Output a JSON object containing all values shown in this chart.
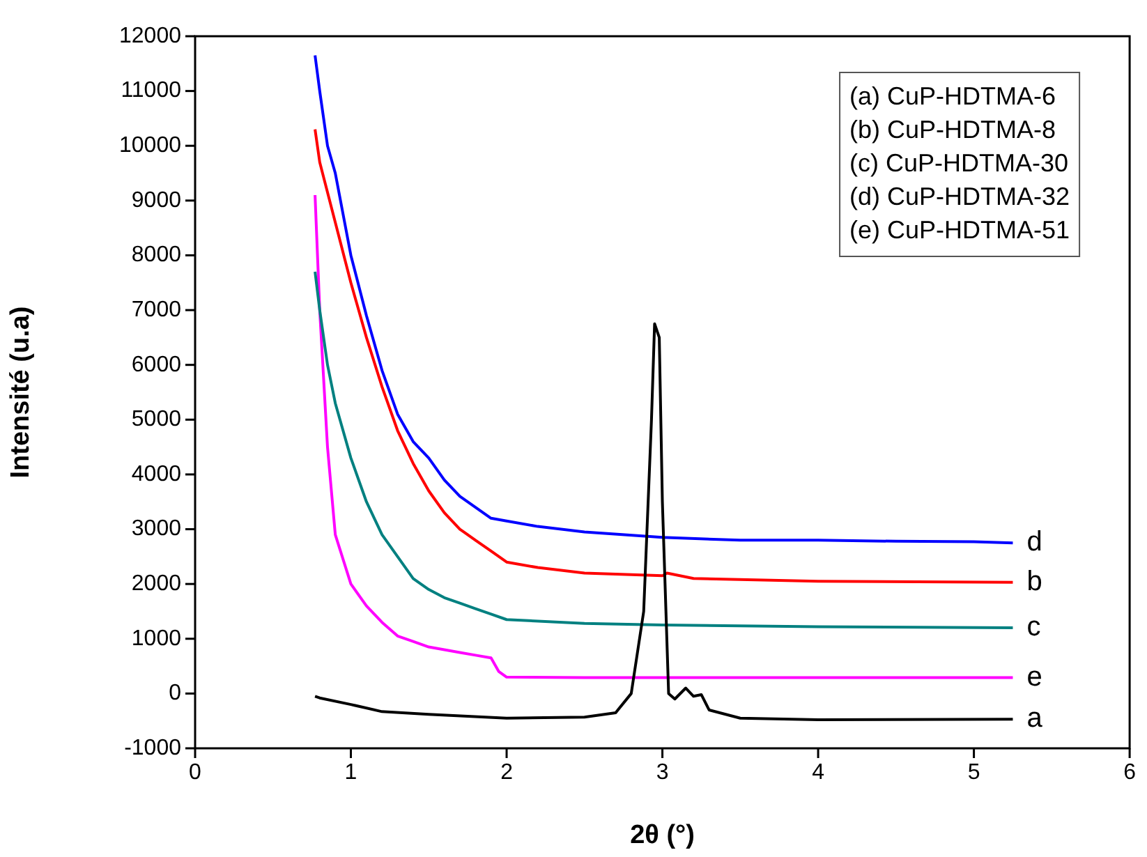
{
  "chart_data": {
    "type": "line",
    "xlabel": "2θ (°)",
    "ylabel": "Intensité (u.a)",
    "xlim": [
      0,
      6
    ],
    "xticks": [
      0,
      1,
      2,
      3,
      4,
      5,
      6
    ],
    "ylim": [
      -1000,
      12000
    ],
    "yticks": [
      -1000,
      0,
      1000,
      2000,
      3000,
      4000,
      5000,
      6000,
      7000,
      8000,
      9000,
      10000,
      11000,
      12000
    ],
    "grid": false,
    "marker": "none",
    "line_style": "solid",
    "series": [
      {
        "name": "a",
        "color": "#000000",
        "x": [
          0.77,
          0.8,
          1.0,
          1.2,
          1.5,
          2.0,
          2.5,
          2.7,
          2.8,
          2.88,
          2.93,
          2.95,
          2.98,
          3.0,
          3.04,
          3.08,
          3.15,
          3.2,
          3.25,
          3.3,
          3.5,
          4.0,
          5.25
        ],
        "values": [
          -50,
          -80,
          -200,
          -330,
          -380,
          -450,
          -430,
          -350,
          0,
          1500,
          5000,
          6750,
          6500,
          3500,
          0,
          -100,
          100,
          -50,
          -20,
          -300,
          -450,
          -480,
          -470
        ]
      },
      {
        "name": "b",
        "color": "#ff0000",
        "x": [
          0.77,
          0.8,
          0.9,
          1.0,
          1.1,
          1.2,
          1.3,
          1.4,
          1.5,
          1.6,
          1.7,
          1.8,
          1.9,
          2.0,
          2.2,
          2.5,
          3.0,
          3.03,
          3.2,
          4.0,
          5.25
        ],
        "values": [
          10300,
          9700,
          8600,
          7500,
          6500,
          5600,
          4800,
          4200,
          3700,
          3300,
          3000,
          2800,
          2600,
          2400,
          2300,
          2200,
          2150,
          2200,
          2100,
          2050,
          2030
        ]
      },
      {
        "name": "c",
        "color": "#008080",
        "x": [
          0.77,
          0.8,
          0.85,
          0.9,
          1.0,
          1.1,
          1.2,
          1.3,
          1.4,
          1.5,
          1.6,
          1.7,
          1.8,
          1.9,
          2.0,
          2.5,
          3.0,
          4.0,
          5.25
        ],
        "values": [
          7700,
          7000,
          6000,
          5300,
          4300,
          3500,
          2900,
          2500,
          2100,
          1900,
          1750,
          1650,
          1550,
          1450,
          1350,
          1280,
          1250,
          1220,
          1200
        ]
      },
      {
        "name": "d",
        "color": "#0000ff",
        "x": [
          0.77,
          0.8,
          0.85,
          0.9,
          1.0,
          1.1,
          1.2,
          1.3,
          1.4,
          1.5,
          1.6,
          1.7,
          1.8,
          1.9,
          2.0,
          2.2,
          2.5,
          3.0,
          3.5,
          4.0,
          4.5,
          5.0,
          5.25
        ],
        "values": [
          11650,
          11000,
          10000,
          9500,
          8000,
          6900,
          5900,
          5100,
          4600,
          4300,
          3900,
          3600,
          3400,
          3200,
          3150,
          3050,
          2950,
          2850,
          2800,
          2800,
          2780,
          2770,
          2750
        ]
      },
      {
        "name": "e",
        "color": "#ff00ff",
        "x": [
          0.77,
          0.8,
          0.85,
          0.9,
          1.0,
          1.1,
          1.2,
          1.3,
          1.4,
          1.5,
          1.6,
          1.7,
          1.8,
          1.9,
          1.95,
          2.0,
          2.5,
          3.0,
          5.25
        ],
        "values": [
          9100,
          7000,
          4500,
          2900,
          2000,
          1600,
          1300,
          1050,
          950,
          850,
          800,
          750,
          700,
          650,
          400,
          300,
          290,
          290,
          290
        ]
      }
    ],
    "annotations": [
      "(a) CuP-HDTMA-6",
      "(b) CuP-HDTMA-8",
      "(c) CuP-HDTMA-30",
      "(d) CuP-HDTMA-32",
      "(e) CuP-HDTMA-51"
    ]
  }
}
